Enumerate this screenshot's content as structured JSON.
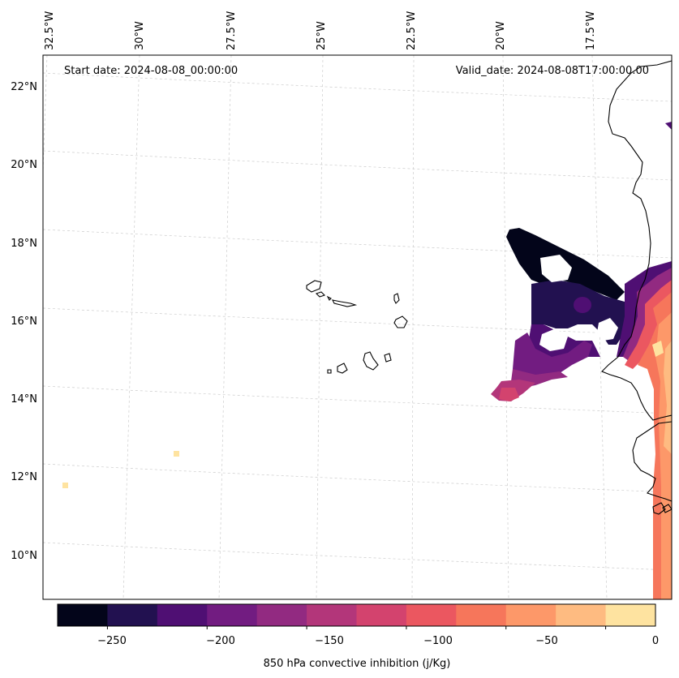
{
  "header": {
    "start_date": "Start date: 2024-08-08_00:00:00",
    "valid_date": "Valid_date: 2024-08-08T17:00:00.00"
  },
  "map": {
    "lon_labels": [
      "32.5°W",
      "30°W",
      "27.5°W",
      "25°W",
      "22.5°W",
      "20°W",
      "17.5°W"
    ],
    "lat_labels": [
      "22°N",
      "20°N",
      "18°N",
      "16°N",
      "14°N",
      "12°N",
      "10°N"
    ],
    "gridlines": "dashed",
    "coastline_color": "#000000"
  },
  "colorbar": {
    "label": "850 hPa convective inhibition (j/Kg)",
    "ticks": [
      "−250",
      "−200",
      "−150",
      "−100",
      "−50",
      "0"
    ],
    "colors": [
      "#03051a",
      "#221150",
      "#4f0f73",
      "#721c81",
      "#922a81",
      "#b3367a",
      "#d3436e",
      "#eb5760",
      "#f6765b",
      "#fd9869",
      "#febb81",
      "#fee3a0"
    ]
  },
  "legend_levels": [
    -275,
    -250,
    -225,
    -200,
    -175,
    -150,
    -125,
    -100,
    -75,
    -50,
    -25,
    0
  ]
}
